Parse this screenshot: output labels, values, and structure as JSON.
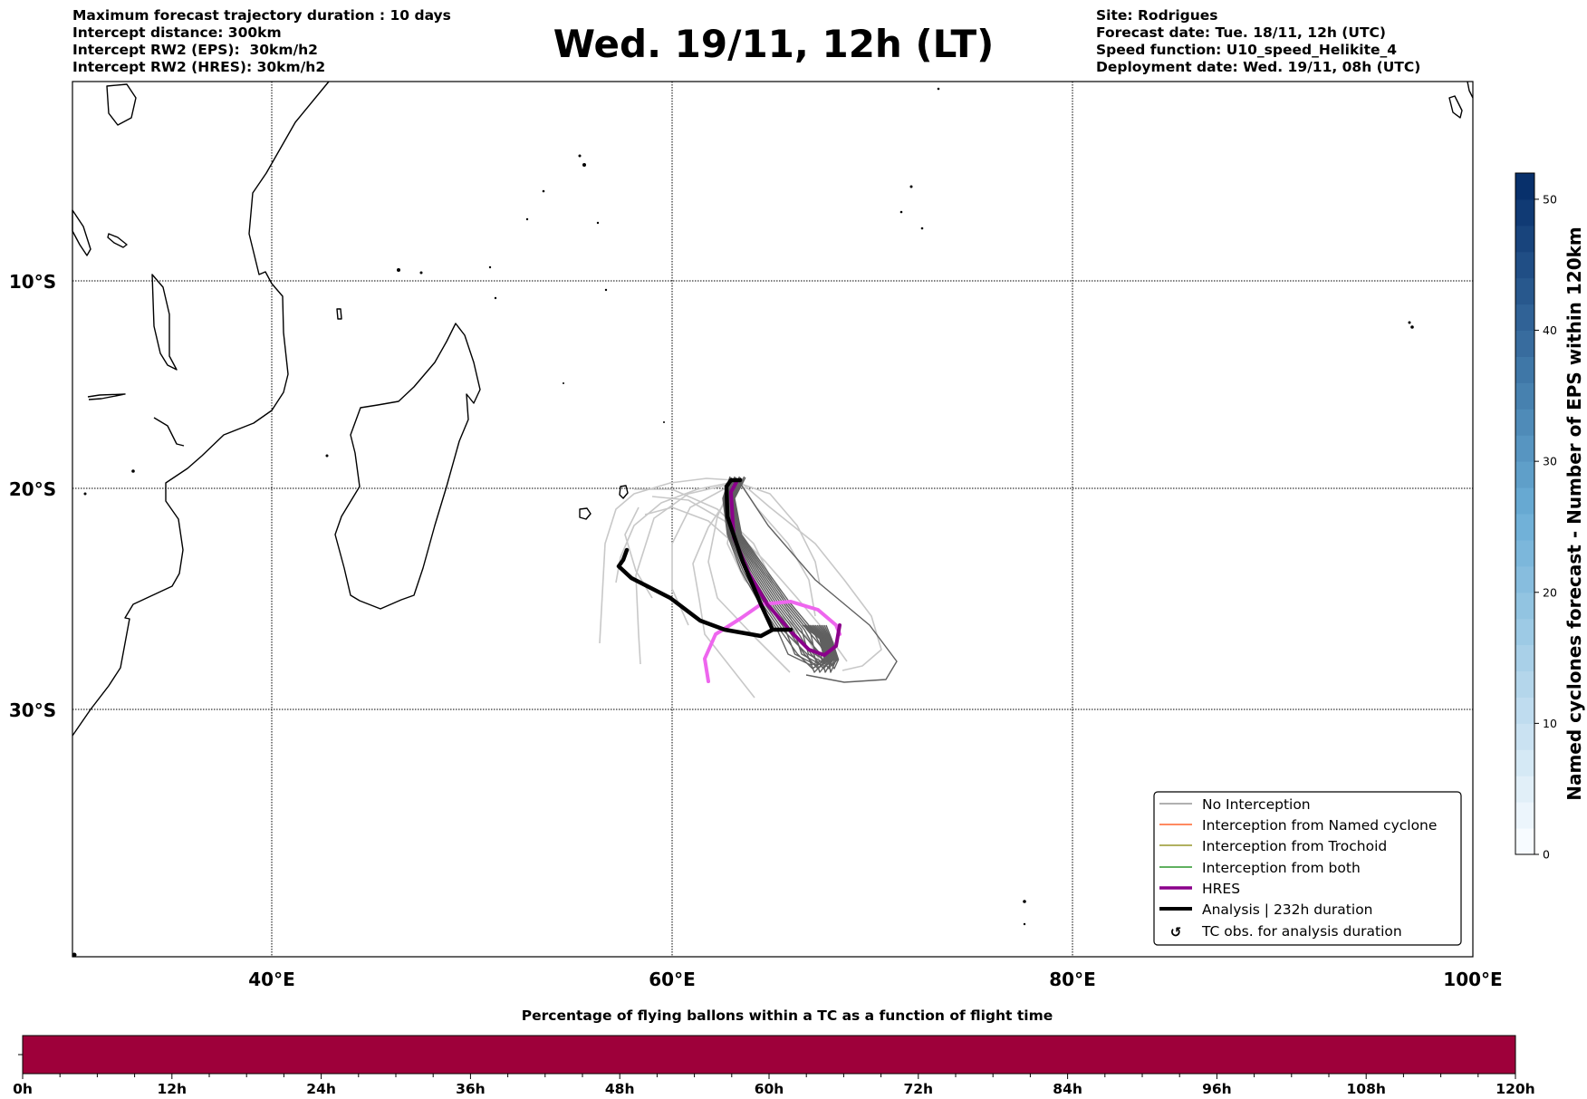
{
  "header": {
    "left_lines": [
      "Maximum forecast trajectory duration : 10 days",
      "Intercept distance: 300km",
      "Intercept RW2 (EPS):  30km/h2",
      "Intercept RW2 (HRES): 30km/h2"
    ],
    "title": "Wed. 19/11, 12h (LT)",
    "right_lines": [
      "Site: Rodrigues",
      "Forecast date: Tue. 18/11, 12h (UTC)",
      "Speed function: U10_speed_Helikite_4",
      "Deployment date: Wed. 19/11, 08h (UTC)"
    ]
  },
  "map": {
    "lat_labels": [
      "10°S",
      "20°S",
      "30°S"
    ],
    "lon_labels": [
      "40°E",
      "60°E",
      "80°E",
      "100°E"
    ],
    "extent": {
      "lon": [
        30,
        100
      ],
      "lat": [
        -40,
        0
      ]
    }
  },
  "legend": {
    "items": [
      {
        "label": "No Interception",
        "color": "#808080"
      },
      {
        "label": "Interception from Named cyclone",
        "color": "#ff4500"
      },
      {
        "label": "Interception from Trochoid",
        "color": "#808000"
      },
      {
        "label": "Interception from both",
        "color": "#008000"
      },
      {
        "label": "HRES",
        "color": "#8b008b"
      },
      {
        "label": "Analysis | 232h duration",
        "color": "#000000"
      },
      {
        "label": "TC obs. for analysis duration",
        "color": "#000000"
      }
    ]
  },
  "colorbar": {
    "label": "Named cyclones forecast - Number of EPS within 120km",
    "ticks": [
      "0",
      "10",
      "20",
      "30",
      "40",
      "50"
    ],
    "range": [
      0,
      52
    ],
    "colors": [
      "#f7fbff",
      "#08306b"
    ]
  },
  "timebar": {
    "title": "Percentage of flying ballons within a TC as a function of flight time",
    "ticks": [
      "0h",
      "12h",
      "24h",
      "36h",
      "48h",
      "60h",
      "72h",
      "84h",
      "96h",
      "108h",
      "120h"
    ],
    "fill_color": "#9e003a"
  },
  "colors": {
    "hres": "#8b008b",
    "hres_alt": "#ee66ee",
    "analysis": "#000000",
    "no_interception_dark": "#606060",
    "no_interception_light": "#c8c8c8"
  }
}
